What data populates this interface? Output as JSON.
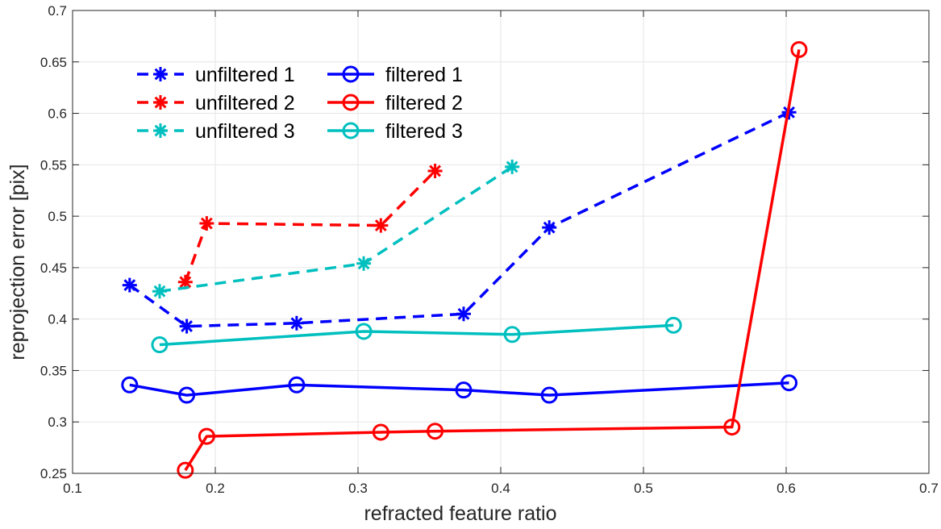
{
  "chart_data": {
    "type": "line",
    "title": "",
    "xlabel": "refracted feature ratio",
    "ylabel": "reprojection error [pix]",
    "xlim": [
      0.1,
      0.7
    ],
    "ylim": [
      0.25,
      0.7
    ],
    "xticks": [
      0.1,
      0.2,
      0.3,
      0.4,
      0.5,
      0.6,
      0.7
    ],
    "xtick_labels": [
      "0.1",
      "0.2",
      "0.3",
      "0.4",
      "0.5",
      "0.6",
      "0.7"
    ],
    "yticks": [
      0.25,
      0.3,
      0.35,
      0.4,
      0.45,
      0.5,
      0.55,
      0.6,
      0.65,
      0.7
    ],
    "ytick_labels": [
      "0.25",
      "0.3",
      "0.35",
      "0.4",
      "0.45",
      "0.5",
      "0.55",
      "0.6",
      "0.65",
      "0.7"
    ],
    "grid": true,
    "legend_position": "top-left",
    "series": [
      {
        "name": "unfiltered 1",
        "color": "#0000ff",
        "marker": "asterisk",
        "linestyle": "dashed",
        "x": [
          0.14,
          0.18,
          0.257,
          0.374,
          0.434,
          0.602
        ],
        "y": [
          0.433,
          0.393,
          0.396,
          0.405,
          0.489,
          0.601
        ]
      },
      {
        "name": "unfiltered 2",
        "color": "#ff0000",
        "marker": "asterisk",
        "linestyle": "dashed",
        "x": [
          0.179,
          0.194,
          0.316,
          0.354
        ],
        "y": [
          0.436,
          0.493,
          0.491,
          0.544
        ]
      },
      {
        "name": "unfiltered 3",
        "color": "#00bfbf",
        "marker": "asterisk",
        "linestyle": "dashed",
        "x": [
          0.161,
          0.304,
          0.408
        ],
        "y": [
          0.427,
          0.454,
          0.548
        ]
      },
      {
        "name": "filtered 1",
        "color": "#0000ff",
        "marker": "circle",
        "linestyle": "solid",
        "x": [
          0.14,
          0.18,
          0.257,
          0.374,
          0.434,
          0.602
        ],
        "y": [
          0.336,
          0.326,
          0.336,
          0.331,
          0.326,
          0.338
        ]
      },
      {
        "name": "filtered 2",
        "color": "#ff0000",
        "marker": "circle",
        "linestyle": "solid",
        "x": [
          0.179,
          0.194,
          0.316,
          0.354,
          0.562,
          0.609
        ],
        "y": [
          0.253,
          0.286,
          0.29,
          0.291,
          0.295,
          0.662
        ]
      },
      {
        "name": "filtered 3",
        "color": "#00bfbf",
        "marker": "circle",
        "linestyle": "solid",
        "x": [
          0.161,
          0.304,
          0.408,
          0.521
        ],
        "y": [
          0.375,
          0.388,
          0.385,
          0.394
        ]
      }
    ]
  }
}
